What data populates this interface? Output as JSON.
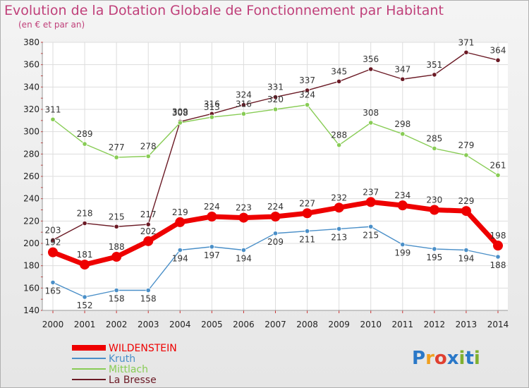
{
  "title": "Evolution de la Dotation Globale de Fonctionnement par Habitant",
  "subtitle": "(en € et par an)",
  "logo": {
    "letters": [
      "P",
      "r",
      "o",
      "x",
      "i",
      "t",
      "i"
    ],
    "colors": [
      "#2a78c8",
      "#f0a020",
      "#e04030",
      "#2a78c8",
      "#80b030",
      "#2a78c8",
      "#80b030"
    ]
  },
  "chart_data": {
    "type": "line",
    "title": "Evolution de la Dotation Globale de Fonctionnement par Habitant",
    "subtitle": "(en € et par an)",
    "x": [
      "2000",
      "2001",
      "2002",
      "2003",
      "2004",
      "2005",
      "2006",
      "2007",
      "2008",
      "2009",
      "2010",
      "2011",
      "2012",
      "2013",
      "2014"
    ],
    "ylim": [
      140,
      380
    ],
    "yticks": [
      140,
      160,
      180,
      200,
      220,
      240,
      260,
      280,
      300,
      320,
      340,
      360,
      380
    ],
    "grid": true,
    "legend": "bottom-left",
    "series": [
      {
        "name": "WILDENSTEIN",
        "color": "#ee0000",
        "values": [
          192,
          181,
          188,
          202,
          219,
          224,
          223,
          224,
          227,
          232,
          237,
          234,
          230,
          229,
          198
        ]
      },
      {
        "name": "Kruth",
        "color": "#4a8fc8",
        "values": [
          165,
          152,
          158,
          158,
          194,
          197,
          194,
          209,
          211,
          213,
          215,
          199,
          195,
          194,
          188
        ]
      },
      {
        "name": "Mittlach",
        "color": "#88cc55",
        "values": [
          311,
          289,
          277,
          278,
          308,
          313,
          316,
          320,
          324,
          288,
          308,
          298,
          285,
          279,
          261
        ]
      },
      {
        "name": "La Bresse",
        "color": "#6b1a25",
        "values": [
          203,
          218,
          215,
          217,
          309,
          316,
          324,
          331,
          337,
          345,
          356,
          347,
          351,
          371,
          364
        ]
      }
    ]
  }
}
